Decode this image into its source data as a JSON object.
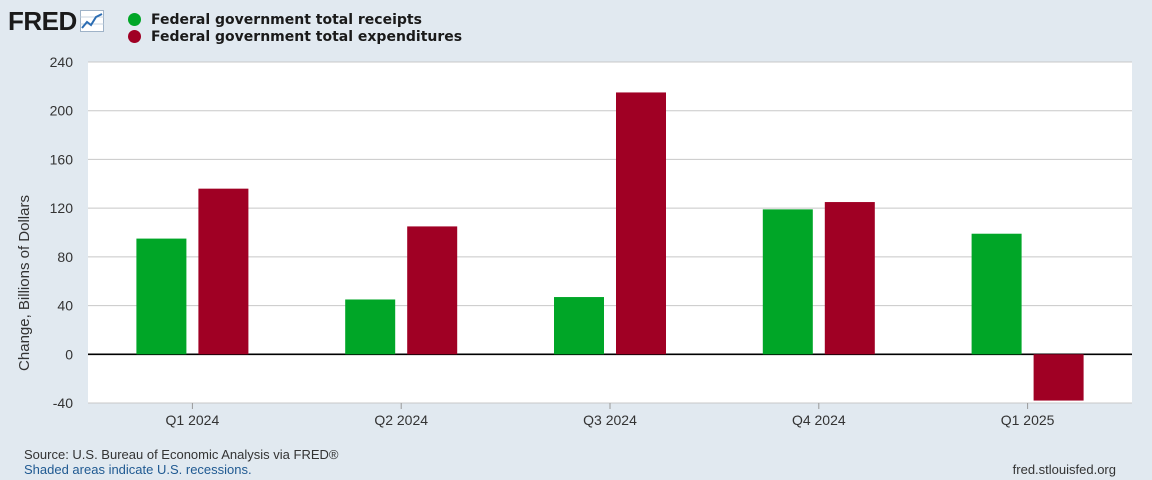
{
  "header": {
    "logo_text": "FRED",
    "logo_icon": "fred-graph-icon"
  },
  "legend": [
    {
      "label": "Federal government total receipts",
      "color": "#00a627"
    },
    {
      "label": "Federal government total expenditures",
      "color": "#a00024"
    }
  ],
  "chart_data": {
    "type": "bar",
    "title": "",
    "xlabel": "",
    "ylabel": "Change, Billions of Dollars",
    "categories": [
      "Q1 2024",
      "Q2 2024",
      "Q3 2024",
      "Q4 2024",
      "Q1 2025"
    ],
    "series": [
      {
        "name": "Federal government total receipts",
        "color": "#00a627",
        "values": [
          95,
          45,
          47,
          119,
          99
        ]
      },
      {
        "name": "Federal government total expenditures",
        "color": "#a00024",
        "values": [
          136,
          105,
          215,
          125,
          -38
        ]
      }
    ],
    "ylim": [
      -40,
      240
    ],
    "yticks": [
      -40,
      0,
      40,
      80,
      120,
      160,
      200,
      240
    ],
    "grid": true,
    "legend_position": "top-left"
  },
  "footer": {
    "source": "Source: U.S. Bureau of Economic Analysis via FRED®",
    "note": "Shaded areas indicate U.S. recessions.",
    "site": "fred.stlouisfed.org"
  }
}
